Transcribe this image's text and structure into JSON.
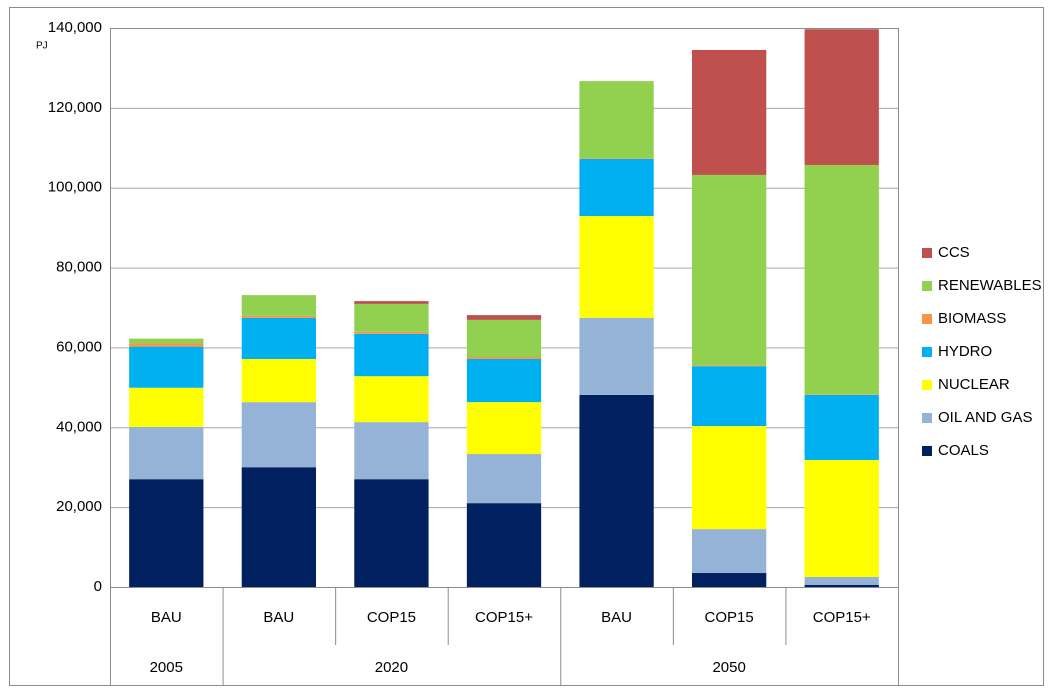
{
  "chart_data": {
    "type": "stacked_bar",
    "y_label": "PJ",
    "groups": [
      {
        "label": "2005",
        "categories": [
          "BAU"
        ]
      },
      {
        "label": "2020",
        "categories": [
          "BAU",
          "COP15",
          "COP15+"
        ]
      },
      {
        "label": "2050",
        "categories": [
          "BAU",
          "COP15",
          "COP15+"
        ]
      }
    ],
    "series": [
      {
        "name": "COALS",
        "color": "#002060",
        "values": [
          27000,
          30000,
          27000,
          21000,
          48100,
          3500,
          500
        ]
      },
      {
        "name": "OIL AND GAS",
        "color": "#95b3d7",
        "values": [
          13100,
          16300,
          14300,
          12300,
          19300,
          11000,
          2000
        ]
      },
      {
        "name": "NUCLEAR",
        "color": "#ffff00",
        "values": [
          9800,
          10800,
          11500,
          13000,
          25500,
          25800,
          29300
        ]
      },
      {
        "name": "HYDRO",
        "color": "#00b0f0",
        "values": [
          10300,
          10300,
          10600,
          10800,
          14300,
          15000,
          16300
        ]
      },
      {
        "name": "BIOMASS",
        "color": "#f79646",
        "values": [
          800,
          500,
          500,
          500,
          200,
          200,
          200
        ]
      },
      {
        "name": "RENEWABLES",
        "color": "#92d050",
        "values": [
          1200,
          5200,
          7000,
          9300,
          19300,
          47700,
          57400
        ]
      },
      {
        "name": "CCS",
        "color": "#c0504d",
        "values": [
          0,
          0,
          700,
          1200,
          0,
          31300,
          34000
        ]
      }
    ],
    "ylim": [
      0,
      140000
    ],
    "yticks": [
      0,
      {
        "value": 20000,
        "label": "20,000"
      },
      {
        "value": 40000,
        "label": "40,000"
      },
      {
        "value": 60000,
        "label": "60,000"
      },
      {
        "value": 80000,
        "label": "80,000"
      },
      {
        "value": 100000,
        "label": "100,000"
      },
      {
        "value": 120000,
        "label": "120,000"
      },
      {
        "value": 140000,
        "label": "140,000"
      }
    ],
    "grid": true,
    "legend": "right"
  }
}
